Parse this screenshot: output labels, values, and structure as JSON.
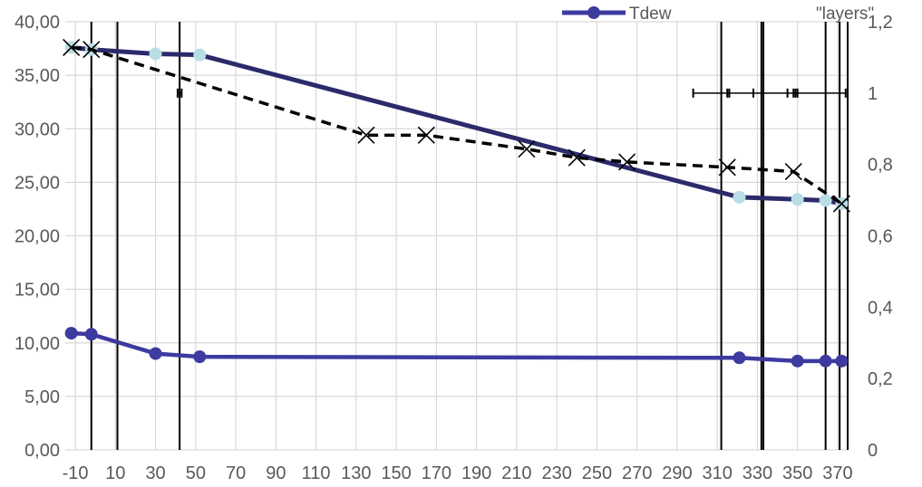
{
  "chart_data": {
    "type": "line",
    "title": "",
    "xlabel": "",
    "ylabel": "",
    "x_range": [
      -15,
      375
    ],
    "x_ticks": [
      -10,
      10,
      30,
      50,
      70,
      90,
      110,
      130,
      150,
      170,
      190,
      210,
      230,
      250,
      270,
      290,
      310,
      330,
      350,
      370
    ],
    "y_left": {
      "range": [
        0,
        40
      ],
      "ticks": [
        "0,00",
        "5,00",
        "10,00",
        "15,00",
        "20,00",
        "25,00",
        "30,00",
        "35,00",
        "40,00"
      ]
    },
    "y_right": {
      "range": [
        0,
        1.2
      ],
      "ticks": [
        "0",
        "0,2",
        "0,4",
        "0,6",
        "0,8",
        "1",
        "1,2"
      ]
    },
    "grid": true,
    "legend_position": "top-right",
    "legend": [
      "Tdew",
      "\"layers\""
    ],
    "colors": {
      "navy": "#2b2a6b",
      "marker_light": "#b8dde4",
      "series_blue": "#3d3aa0",
      "dashed": "#000000",
      "grid": "#d9d9d9"
    },
    "series": [
      {
        "style": "solid-thick-navy-light-markers",
        "axis": "left",
        "points": [
          [
            -12,
            37.6
          ],
          [
            -2,
            37.4
          ],
          [
            30,
            37.0
          ],
          [
            52,
            36.9
          ],
          [
            321,
            23.6
          ],
          [
            350,
            23.4
          ],
          [
            364,
            23.3
          ],
          [
            372,
            23.0
          ]
        ]
      },
      {
        "name": "Tdew",
        "style": "solid-blue-markers",
        "axis": "left",
        "points": [
          [
            -12,
            10.9
          ],
          [
            -2,
            10.8
          ],
          [
            30,
            9.0
          ],
          [
            52,
            8.7
          ],
          [
            321,
            8.6
          ],
          [
            350,
            8.3
          ],
          [
            364,
            8.3
          ],
          [
            372,
            8.3
          ]
        ]
      },
      {
        "style": "dashed-x-markers",
        "axis": "left",
        "points": [
          [
            -12,
            37.6
          ],
          [
            -2,
            37.4
          ],
          [
            135,
            29.4
          ],
          [
            165,
            29.4
          ],
          [
            215,
            28.1
          ],
          [
            240,
            27.3
          ],
          [
            265,
            26.9
          ],
          [
            315,
            26.4
          ],
          [
            348,
            26.0
          ],
          [
            372,
            23.0
          ]
        ]
      },
      {
        "name": "\"layers\"",
        "style": "vertical-lines",
        "axis": "right",
        "x_positions": [
          -2,
          11,
          42,
          312,
          332,
          333,
          364,
          371
        ]
      },
      {
        "style": "error-bars",
        "axis": "right",
        "level": 1,
        "segments": [
          [
            -2,
            -2
          ],
          [
            11,
            11
          ],
          [
            41,
            43
          ],
          [
            298,
            374
          ]
        ],
        "caps": [
          -2,
          11,
          41,
          43,
          298,
          315,
          316,
          328,
          345,
          348,
          349,
          350,
          374
        ]
      }
    ]
  }
}
